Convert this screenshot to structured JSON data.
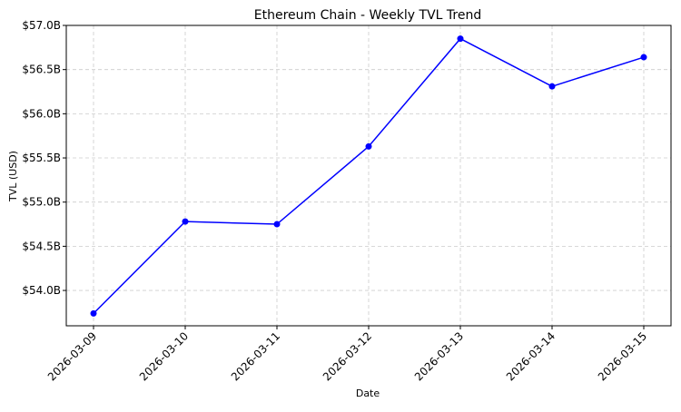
{
  "chart_data": {
    "type": "line",
    "title": "Ethereum Chain - Weekly TVL Trend",
    "xlabel": "Date",
    "ylabel": "TVL (USD)",
    "x": [
      "2026-03-09",
      "2026-03-10",
      "2026-03-11",
      "2026-03-12",
      "2026-03-13",
      "2026-03-14",
      "2026-03-15"
    ],
    "series": [
      {
        "values": [
          53.74,
          54.78,
          54.75,
          55.63,
          56.85,
          56.31,
          56.64
        ],
        "color": "#0000ff"
      }
    ],
    "ylim": [
      53.6,
      57.0
    ],
    "yticks": [
      54.0,
      54.5,
      55.0,
      55.5,
      56.0,
      56.5,
      57.0
    ],
    "ytick_labels": [
      "$54.0B",
      "$54.5B",
      "$55.0B",
      "$55.5B",
      "$56.0B",
      "$56.5B",
      "$57.0B"
    ],
    "grid": true,
    "marker": "circle",
    "xtick_rotation": 45
  }
}
